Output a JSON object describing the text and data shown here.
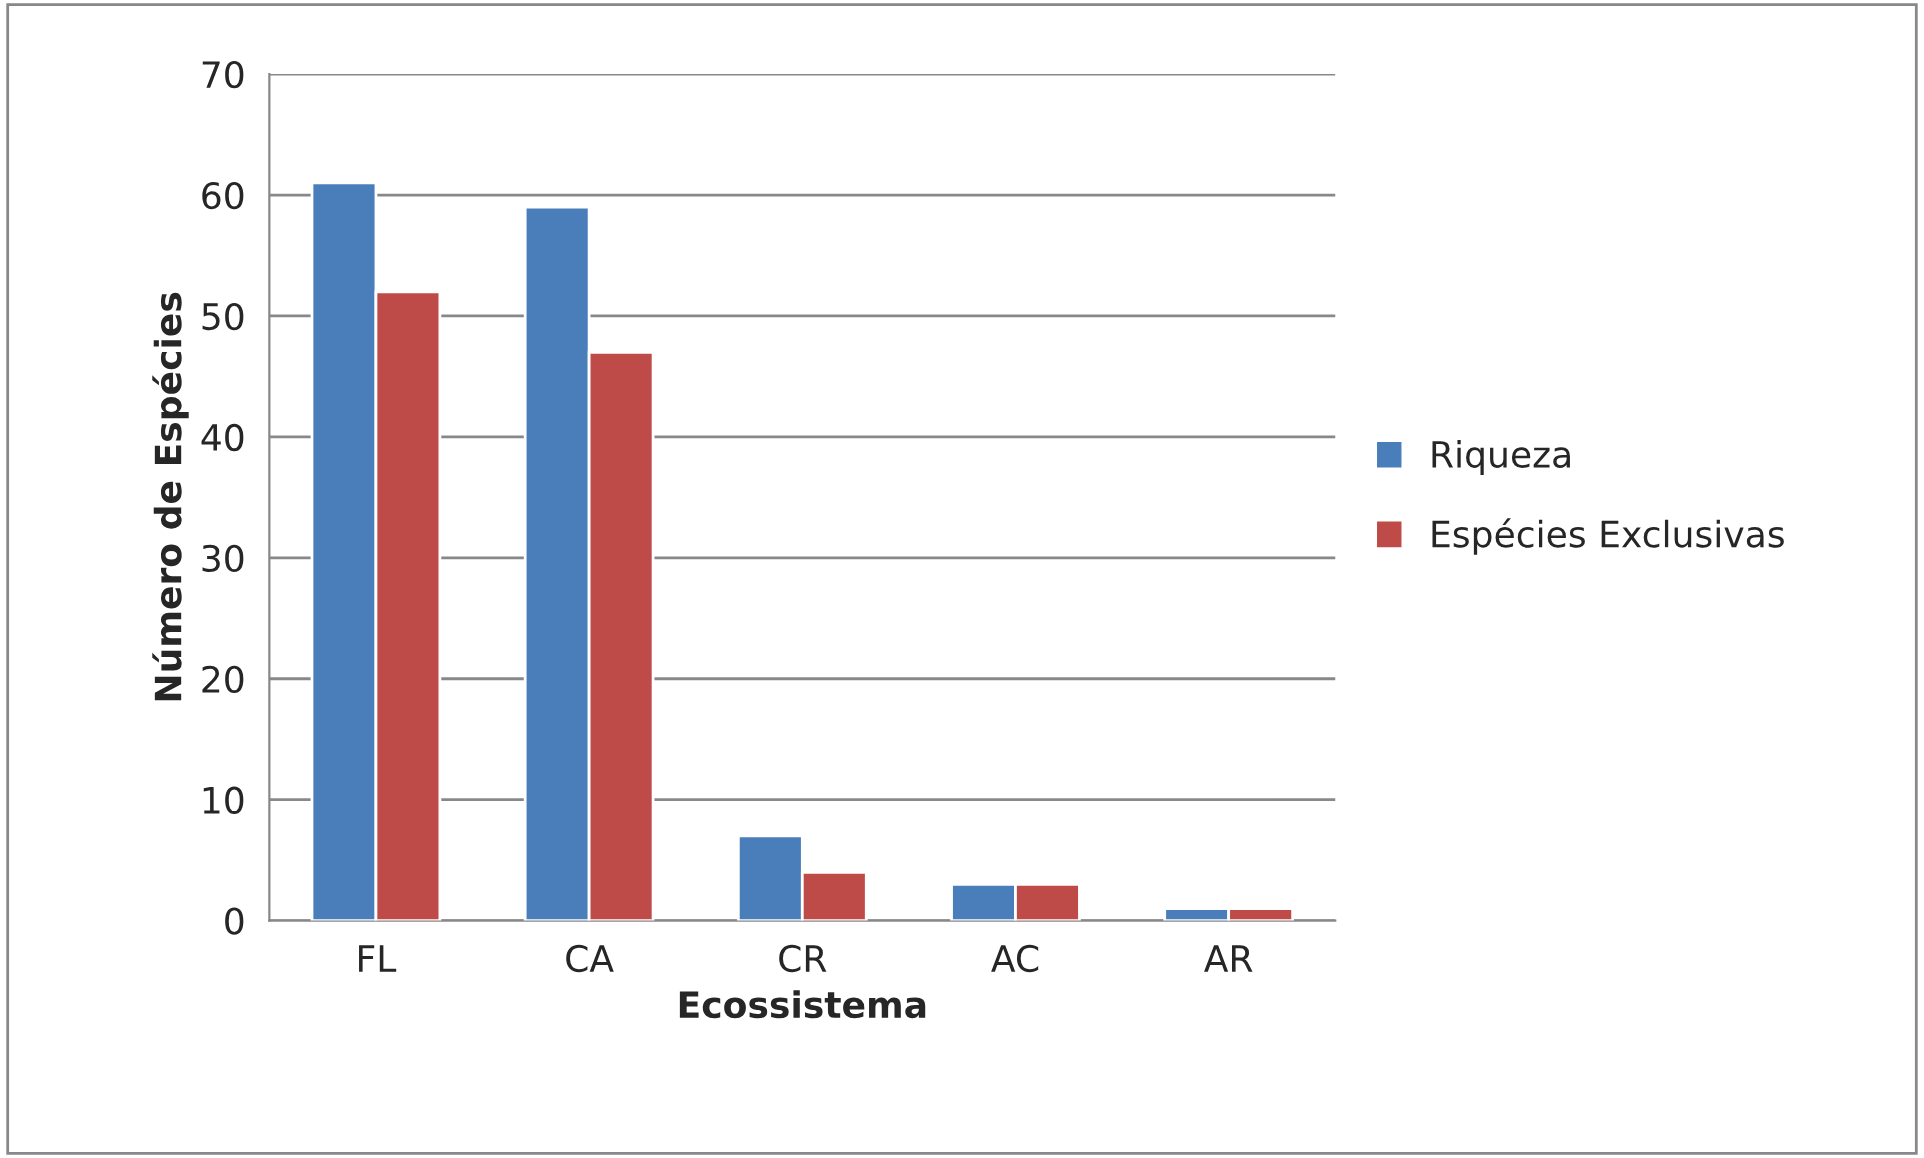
{
  "chart_data": {
    "type": "bar",
    "xlabel": "Ecossistema",
    "ylabel": "Número de Espécies",
    "categories": [
      "FL",
      "CA",
      "CR",
      "AC",
      "AR"
    ],
    "series": [
      {
        "name": "Riqueza",
        "color": "#4a7ebb",
        "values": [
          61,
          59,
          7,
          3,
          1
        ]
      },
      {
        "name": "Espécies Exclusivas",
        "color": "#be4b48",
        "values": [
          52,
          47,
          4,
          3,
          1
        ]
      }
    ],
    "ylim": [
      0,
      70
    ],
    "yticks": [
      0,
      10,
      20,
      30,
      40,
      50,
      60,
      70
    ],
    "grid": "y",
    "legend": "right"
  }
}
